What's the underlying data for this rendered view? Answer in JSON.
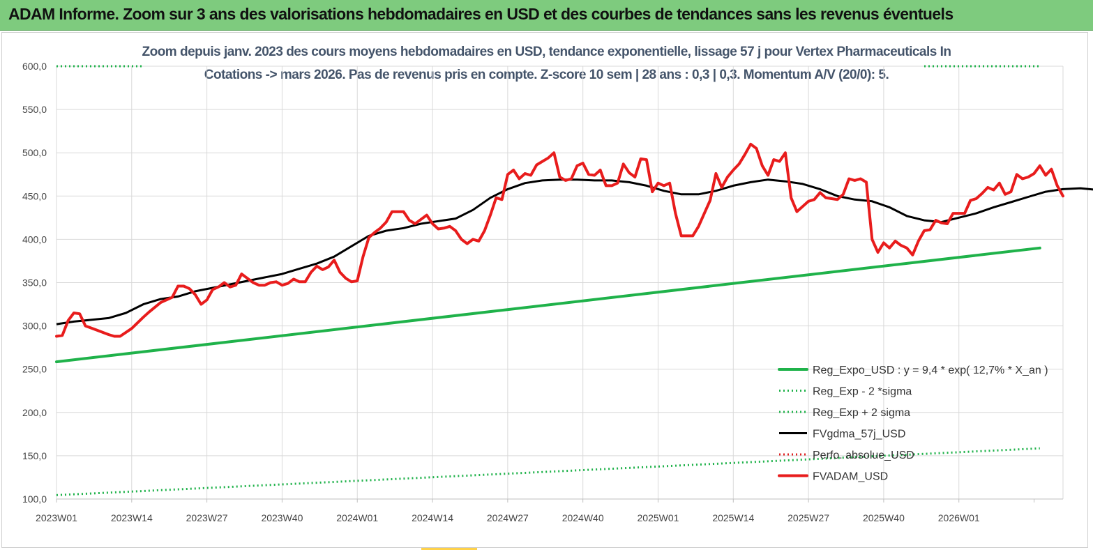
{
  "banner": {
    "title": "ADAM Informe. Zoom sur 3 ans des valorisations hebdomadaires en USD et des courbes de tendances sans les revenus éventuels",
    "color": "#7ecb7e"
  },
  "chart_data": {
    "type": "line",
    "subtitle_1": "Zoom depuis janv. 2023 des cours moyens hebdomadaires en USD, tendance exponentielle, lissage 57 j pour Vertex Pharmaceuticals In",
    "subtitle_2": "Cotations -> mars 2026. Pas de revenus pris en compte. Z-score 10 sem | 28 ans : 0,3 | 0,3. Momentum A/V (20/0): 5.",
    "ylim": [
      100,
      600
    ],
    "y_ticks": [
      "100,0",
      "150,0",
      "200,0",
      "250,0",
      "300,0",
      "350,0",
      "400,0",
      "450,0",
      "500,0",
      "550,0",
      "600,0"
    ],
    "x_ticks": [
      "2023W01",
      "2023W14",
      "2023W27",
      "2023W40",
      "2024W01",
      "2024W14",
      "2024W27",
      "2024W40",
      "2025W01",
      "2025W14",
      "2025W27",
      "2025W40",
      "2026W01"
    ],
    "week_range": [
      0,
      170
    ],
    "grid": true,
    "legend_position": "bottom-right",
    "series": [
      {
        "name": "Reg_Expo_USD : y = 9,4 * exp( 12,7% * X_an )",
        "color": "#1fb24a",
        "style": "solid-thick",
        "points": [
          [
            0,
            258.5
          ],
          [
            170,
            390
          ]
        ]
      },
      {
        "name": "Reg_Exp - 2 *sigma",
        "color": "#1fb24a",
        "style": "dotted",
        "points": [
          [
            0,
            104.5
          ],
          [
            170,
            158.5
          ]
        ]
      },
      {
        "name": "Reg_Exp + 2 sigma",
        "color": "#1fb24a",
        "style": "dotted",
        "points": [
          [
            0,
            600
          ],
          [
            15,
            600
          ]
        ],
        "points_b": [
          [
            150,
            600
          ],
          [
            170,
            600
          ]
        ]
      },
      {
        "name": "FVgdma_57j_USD",
        "color": "#000000",
        "style": "solid",
        "points": [
          [
            0,
            302
          ],
          [
            3,
            305
          ],
          [
            6,
            307
          ],
          [
            9,
            309
          ],
          [
            12,
            315
          ],
          [
            15,
            325
          ],
          [
            18,
            331
          ],
          [
            21,
            334
          ],
          [
            24,
            340
          ],
          [
            27,
            344
          ],
          [
            30,
            348
          ],
          [
            33,
            352
          ],
          [
            36,
            356
          ],
          [
            39,
            360
          ],
          [
            42,
            366
          ],
          [
            45,
            372
          ],
          [
            48,
            380
          ],
          [
            51,
            392
          ],
          [
            54,
            404
          ],
          [
            57,
            410
          ],
          [
            60,
            413
          ],
          [
            63,
            418
          ],
          [
            66,
            421
          ],
          [
            69,
            424
          ],
          [
            72,
            434
          ],
          [
            75,
            448
          ],
          [
            78,
            458
          ],
          [
            81,
            465
          ],
          [
            84,
            468
          ],
          [
            87,
            469
          ],
          [
            90,
            469
          ],
          [
            93,
            468
          ],
          [
            96,
            468
          ],
          [
            99,
            466
          ],
          [
            102,
            462
          ],
          [
            105,
            456
          ],
          [
            108,
            452
          ],
          [
            111,
            452
          ],
          [
            114,
            456
          ],
          [
            117,
            462
          ],
          [
            120,
            466
          ],
          [
            123,
            469
          ],
          [
            126,
            467
          ],
          [
            129,
            464
          ],
          [
            132,
            458
          ],
          [
            135,
            450
          ],
          [
            138,
            446
          ],
          [
            141,
            444
          ],
          [
            144,
            437
          ],
          [
            147,
            427
          ],
          [
            150,
            422
          ],
          [
            153,
            420
          ],
          [
            156,
            425
          ],
          [
            159,
            430
          ],
          [
            162,
            437
          ],
          [
            165,
            443
          ],
          [
            168,
            449
          ],
          [
            171,
            455
          ],
          [
            174,
            458
          ],
          [
            177,
            459
          ],
          [
            180,
            457
          ],
          [
            182,
            455
          ]
        ]
      },
      {
        "name": "Perfo. absolue_USD",
        "color": "#e02020",
        "style": "dotted",
        "points": []
      },
      {
        "name": "FVADAM_USD",
        "color": "#e81c1c",
        "style": "solid-thick",
        "points": [
          [
            0,
            288
          ],
          [
            1,
            289
          ],
          [
            2,
            306
          ],
          [
            3,
            315
          ],
          [
            4,
            314
          ],
          [
            5,
            300
          ],
          [
            7,
            295
          ],
          [
            9,
            290
          ],
          [
            10,
            288
          ],
          [
            11,
            288
          ],
          [
            13,
            297
          ],
          [
            15,
            310
          ],
          [
            16,
            316
          ],
          [
            18,
            327
          ],
          [
            20,
            333
          ],
          [
            21,
            346
          ],
          [
            22,
            346
          ],
          [
            23,
            343
          ],
          [
            24,
            336
          ],
          [
            25,
            325
          ],
          [
            26,
            330
          ],
          [
            27,
            342
          ],
          [
            28,
            345
          ],
          [
            29,
            350
          ],
          [
            30,
            345
          ],
          [
            31,
            347
          ],
          [
            32,
            360
          ],
          [
            33,
            355
          ],
          [
            34,
            350
          ],
          [
            35,
            347
          ],
          [
            36,
            347
          ],
          [
            37,
            350
          ],
          [
            38,
            351
          ],
          [
            39,
            347
          ],
          [
            40,
            349
          ],
          [
            41,
            354
          ],
          [
            42,
            351
          ],
          [
            43,
            351
          ],
          [
            44,
            362
          ],
          [
            45,
            369
          ],
          [
            46,
            365
          ],
          [
            47,
            368
          ],
          [
            48,
            376
          ],
          [
            49,
            362
          ],
          [
            50,
            355
          ],
          [
            51,
            351
          ],
          [
            52,
            352
          ],
          [
            53,
            380
          ],
          [
            54,
            402
          ],
          [
            55,
            408
          ],
          [
            56,
            413
          ],
          [
            57,
            420
          ],
          [
            58,
            432
          ],
          [
            59,
            432
          ],
          [
            60,
            432
          ],
          [
            61,
            422
          ],
          [
            62,
            418
          ],
          [
            63,
            423
          ],
          [
            64,
            428
          ],
          [
            65,
            418
          ],
          [
            66,
            412
          ],
          [
            67,
            413
          ],
          [
            68,
            415
          ],
          [
            69,
            410
          ],
          [
            70,
            400
          ],
          [
            71,
            395
          ],
          [
            72,
            400
          ],
          [
            73,
            398
          ],
          [
            74,
            410
          ],
          [
            75,
            428
          ],
          [
            76,
            448
          ],
          [
            77,
            446
          ],
          [
            78,
            475
          ],
          [
            79,
            480
          ],
          [
            80,
            470
          ],
          [
            81,
            476
          ],
          [
            82,
            474
          ],
          [
            83,
            486
          ],
          [
            84,
            490
          ],
          [
            85,
            494
          ],
          [
            86,
            500
          ],
          [
            87,
            472
          ],
          [
            88,
            468
          ],
          [
            89,
            470
          ],
          [
            90,
            485
          ],
          [
            91,
            488
          ],
          [
            92,
            475
          ],
          [
            93,
            474
          ],
          [
            94,
            480
          ],
          [
            95,
            462
          ],
          [
            96,
            462
          ],
          [
            97,
            465
          ],
          [
            98,
            487
          ],
          [
            99,
            477
          ],
          [
            100,
            472
          ],
          [
            101,
            493
          ],
          [
            102,
            492
          ],
          [
            103,
            455
          ],
          [
            104,
            465
          ],
          [
            105,
            462
          ],
          [
            106,
            465
          ],
          [
            107,
            430
          ],
          [
            108,
            404
          ],
          [
            109,
            404
          ],
          [
            110,
            404
          ],
          [
            111,
            415
          ],
          [
            112,
            430
          ],
          [
            113,
            445
          ],
          [
            114,
            476
          ],
          [
            115,
            460
          ],
          [
            116,
            472
          ],
          [
            117,
            480
          ],
          [
            118,
            487
          ],
          [
            119,
            498
          ],
          [
            120,
            510
          ],
          [
            121,
            505
          ],
          [
            122,
            485
          ],
          [
            123,
            474
          ],
          [
            124,
            492
          ],
          [
            125,
            490
          ],
          [
            126,
            500
          ],
          [
            127,
            448
          ],
          [
            128,
            432
          ],
          [
            129,
            438
          ],
          [
            130,
            444
          ],
          [
            131,
            446
          ],
          [
            132,
            454
          ],
          [
            133,
            448
          ],
          [
            134,
            447
          ],
          [
            135,
            446
          ],
          [
            136,
            452
          ],
          [
            137,
            470
          ],
          [
            138,
            468
          ],
          [
            139,
            470
          ],
          [
            140,
            466
          ],
          [
            141,
            400
          ],
          [
            142,
            385
          ],
          [
            143,
            396
          ],
          [
            144,
            390
          ],
          [
            145,
            398
          ],
          [
            146,
            393
          ],
          [
            147,
            390
          ],
          [
            148,
            382
          ],
          [
            149,
            398
          ],
          [
            150,
            410
          ],
          [
            151,
            411
          ],
          [
            152,
            422
          ],
          [
            153,
            419
          ],
          [
            154,
            418
          ],
          [
            155,
            430
          ],
          [
            156,
            430
          ],
          [
            157,
            430
          ],
          [
            158,
            445
          ],
          [
            159,
            447
          ],
          [
            160,
            453
          ],
          [
            161,
            460
          ],
          [
            162,
            457
          ],
          [
            163,
            465
          ],
          [
            164,
            452
          ],
          [
            165,
            455
          ],
          [
            166,
            475
          ],
          [
            167,
            470
          ],
          [
            168,
            472
          ],
          [
            169,
            476
          ],
          [
            170,
            485
          ],
          [
            171,
            474
          ],
          [
            172,
            481
          ],
          [
            173,
            462
          ],
          [
            174,
            450
          ]
        ]
      }
    ]
  }
}
